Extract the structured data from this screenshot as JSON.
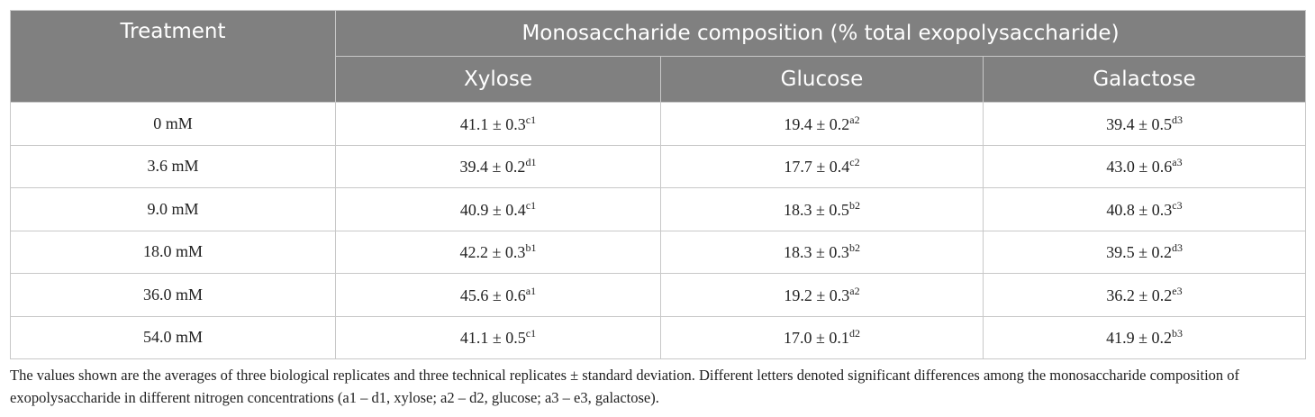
{
  "table": {
    "header": {
      "treatment": "Treatment",
      "group": "Monosaccharide composition (% total exopolysaccharide)",
      "columns": [
        "Xylose",
        "Glucose",
        "Galactose"
      ]
    },
    "rows": [
      {
        "treatment": "0 mM",
        "cells": [
          {
            "text": "41.1 ± 0.3",
            "sup": "c1"
          },
          {
            "text": "19.4 ± 0.2",
            "sup": "a2"
          },
          {
            "text": "39.4 ± 0.5",
            "sup": "d3"
          }
        ]
      },
      {
        "treatment": "3.6 mM",
        "cells": [
          {
            "text": "39.4 ± 0.2",
            "sup": "d1"
          },
          {
            "text": "17.7 ± 0.4",
            "sup": "c2"
          },
          {
            "text": "43.0 ± 0.6",
            "sup": "a3"
          }
        ]
      },
      {
        "treatment": "9.0 mM",
        "cells": [
          {
            "text": "40.9 ± 0.4",
            "sup": "c1"
          },
          {
            "text": "18.3 ± 0.5",
            "sup": "b2"
          },
          {
            "text": "40.8 ± 0.3",
            "sup": "c3"
          }
        ]
      },
      {
        "treatment": "18.0 mM",
        "cells": [
          {
            "text": "42.2 ± 0.3",
            "sup": "b1"
          },
          {
            "text": "18.3 ± 0.3",
            "sup": "b2"
          },
          {
            "text": "39.5 ± 0.2",
            "sup": "d3"
          }
        ]
      },
      {
        "treatment": "36.0 mM",
        "cells": [
          {
            "text": "45.6 ± 0.6",
            "sup": "a1"
          },
          {
            "text": "19.2 ± 0.3",
            "sup": "a2"
          },
          {
            "text": "36.2 ± 0.2",
            "sup": "e3"
          }
        ]
      },
      {
        "treatment": "54.0 mM",
        "cells": [
          {
            "text": "41.1 ± 0.5",
            "sup": "c1"
          },
          {
            "text": "17.0 ± 0.1",
            "sup": "d2"
          },
          {
            "text": "41.9 ± 0.2",
            "sup": "b3"
          }
        ]
      }
    ],
    "footnote": "The values shown are the averages of three biological replicates and three technical replicates ± standard deviation. Different letters denoted significant differences among the monosaccharide composition of exopolysaccharide in different nitrogen concentrations (a1 – d1, xylose; a2 – d2, glucose; a3 – e3, galactose)."
  }
}
